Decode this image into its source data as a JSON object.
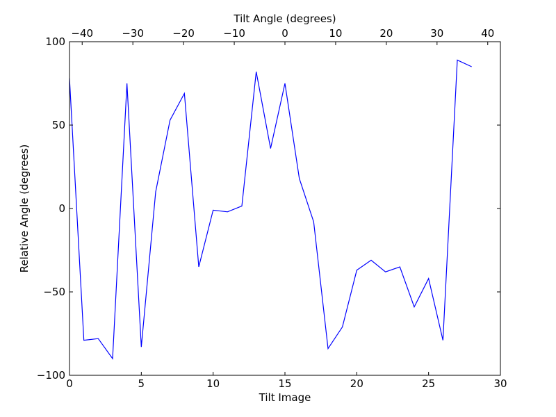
{
  "chart_data": {
    "type": "line",
    "title": "",
    "xlabel": "Tilt Image",
    "ylabel": "Relative Angle (degrees)",
    "top_xlabel": "Tilt Angle (degrees)",
    "xlim": [
      0,
      30
    ],
    "ylim": [
      -100,
      100
    ],
    "top_xlim": [
      -42.5,
      42.5
    ],
    "xticks": [
      0,
      5,
      10,
      15,
      20,
      25,
      30
    ],
    "yticks": [
      -100,
      -50,
      0,
      50,
      100
    ],
    "top_xticks": [
      -40,
      -30,
      -20,
      -10,
      0,
      10,
      20,
      30,
      40
    ],
    "x_tick_labels": [
      "0",
      "5",
      "10",
      "15",
      "20",
      "25",
      "30"
    ],
    "y_tick_labels": [
      "−100",
      "−50",
      "0",
      "50",
      "100"
    ],
    "top_tick_labels": [
      "−40",
      "−30",
      "−20",
      "−10",
      "0",
      "10",
      "20",
      "30",
      "40"
    ],
    "grid": false,
    "line_color": "#0000ff",
    "series": [
      {
        "x": [
          0,
          1,
          2,
          3,
          4,
          5,
          6,
          7,
          8,
          9,
          10,
          11,
          12,
          13,
          14,
          15,
          16,
          17,
          18,
          19,
          20,
          21,
          22,
          23,
          24,
          25,
          26,
          27,
          28
        ],
        "values": [
          78,
          -79,
          -78,
          -90,
          75,
          -83,
          10,
          53,
          69,
          -35,
          -1,
          -2,
          1.5,
          82,
          36,
          75,
          18,
          -8,
          -84,
          -71,
          -37,
          -31,
          -38,
          -35,
          -59,
          -42,
          -79,
          89,
          85
        ]
      }
    ]
  }
}
